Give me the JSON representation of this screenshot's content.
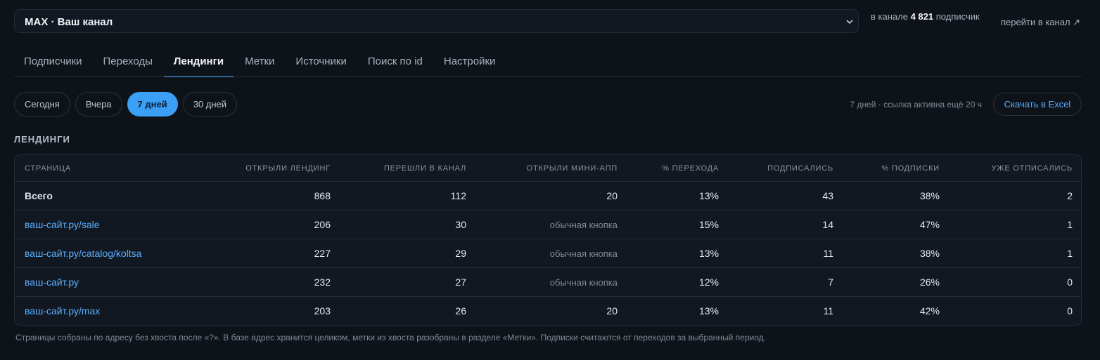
{
  "header": {
    "channel_select": "MAX · Ваш канал",
    "subscribers_prefix": "в канале",
    "subscribers_count": "4 821",
    "subscribers_suffix": "подписчик",
    "channel_link": "перейти в канал ↗"
  },
  "tabs": [
    "Подписчики",
    "Переходы",
    "Лендинги",
    "Метки",
    "Источники",
    "Поиск по id",
    "Настройки"
  ],
  "active_tab": 2,
  "periods": [
    "Сегодня",
    "Вчера",
    "7 дней",
    "30 дней"
  ],
  "active_period": 2,
  "status": "7 дней · ссылка активна ещё 20 ч",
  "download_button": "Скачать в Excel",
  "section_title": "ЛЕНДИНГИ",
  "table": {
    "columns": [
      "СТРАНИЦА",
      "ОТКРЫЛИ ЛЕНДИНГ",
      "ПЕРЕШЛИ В КАНАЛ",
      "ОТКРЫЛИ МИНИ-АПП",
      "% ПЕРЕХОДА",
      "ПОДПИСАЛИСЬ",
      "% ПОДПИСКИ",
      "УЖЕ ОТПИСАЛИСЬ"
    ],
    "rows": [
      [
        "Всего",
        "868",
        "112",
        "20",
        "13%",
        "43",
        "38%",
        "2"
      ],
      [
        "ваш-сайт.ру/sale",
        "206",
        "30",
        "обычная кнопка",
        "15%",
        "14",
        "47%",
        "1"
      ],
      [
        "ваш-сайт.ру/catalog/koltsa",
        "227",
        "29",
        "обычная кнопка",
        "13%",
        "11",
        "38%",
        "1"
      ],
      [
        "ваш-сайт.ру",
        "232",
        "27",
        "обычная кнопка",
        "12%",
        "7",
        "26%",
        "0"
      ],
      [
        "ваш-сайт.ру/max",
        "203",
        "26",
        "20",
        "13%",
        "11",
        "42%",
        "0"
      ]
    ]
  },
  "footnote": "Страницы собраны по адресу без хвоста после «?». В базе адрес хранится целиком, метки из хвоста разобраны в разделе «Метки». Подписки считаются от переходов за выбранный период."
}
